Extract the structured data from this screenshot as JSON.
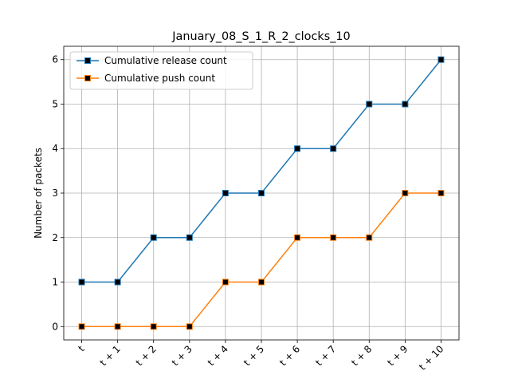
{
  "chart_data": {
    "type": "line",
    "title": "January_08_S_1_R_2_clocks_10",
    "xlabel": "",
    "ylabel": "Number of packets",
    "categories": [
      "t",
      "t + 1",
      "t + 2",
      "t + 3",
      "t + 4",
      "t + 5",
      "t + 6",
      "t + 7",
      "t + 8",
      "t + 9",
      "t + 10"
    ],
    "ylim": [
      -0.3,
      6.3
    ],
    "yticks": [
      0,
      1,
      2,
      3,
      4,
      5,
      6
    ],
    "grid": true,
    "legend_position": "top-left",
    "marker": "square",
    "marker_face_color": "#000000",
    "series": [
      {
        "name": "Cumulative release count",
        "color": "#1f77b4",
        "values": [
          1,
          1,
          2,
          2,
          3,
          3,
          4,
          4,
          5,
          5,
          6
        ]
      },
      {
        "name": "Cumulative push count",
        "color": "#ff7f0e",
        "values": [
          0,
          0,
          0,
          0,
          1,
          1,
          2,
          2,
          2,
          3,
          3
        ]
      }
    ]
  }
}
